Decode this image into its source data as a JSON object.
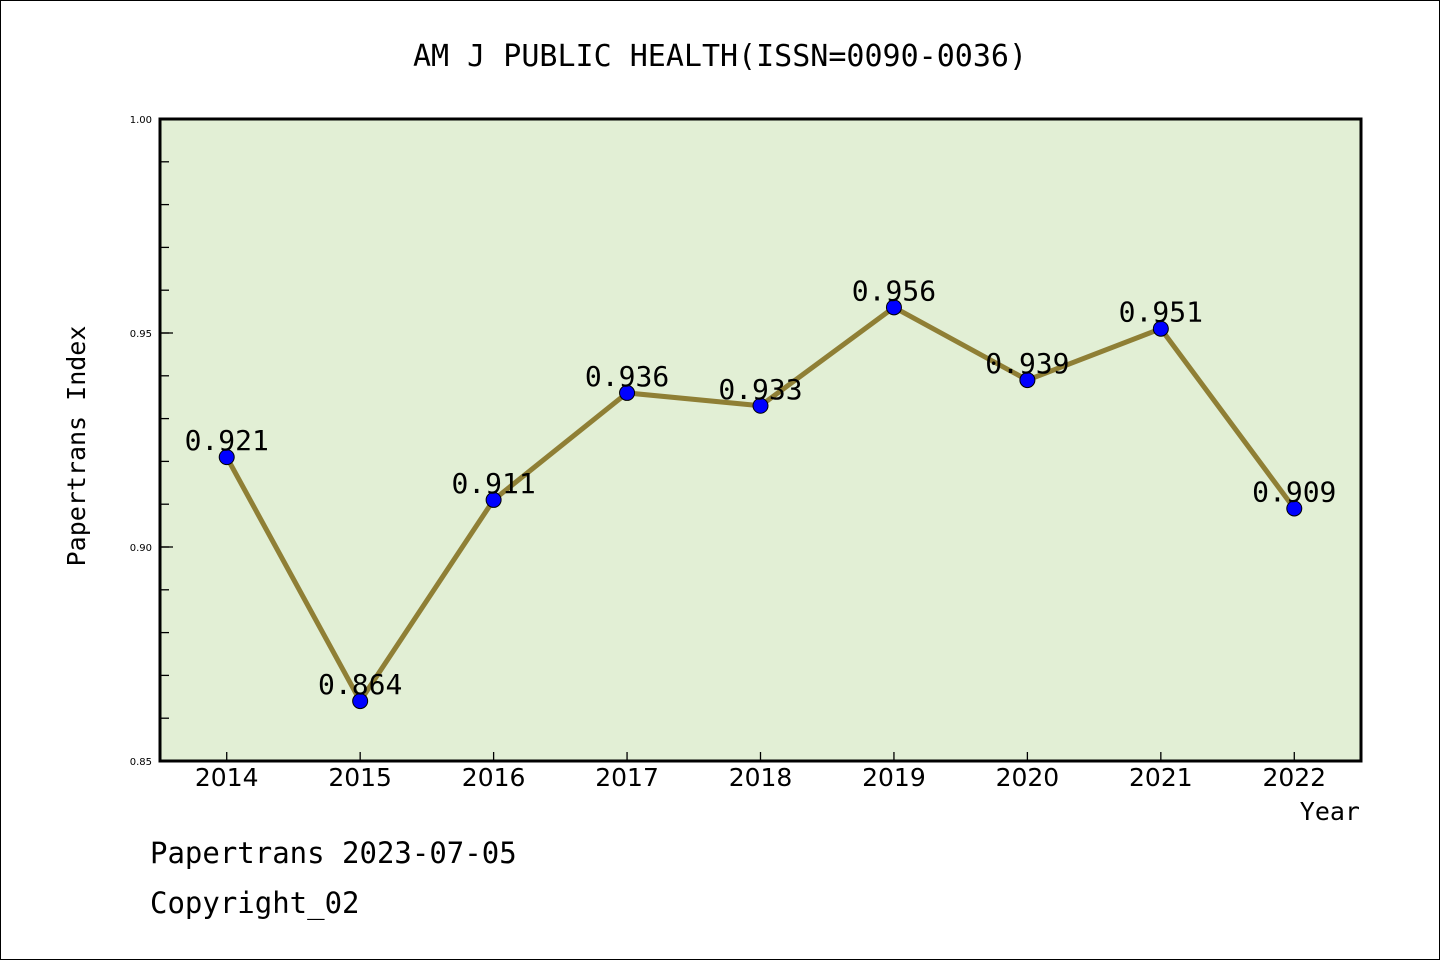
{
  "chart_data": {
    "type": "line",
    "title": "AM J PUBLIC HEALTH(ISSN=0090-0036)",
    "xlabel": "Year",
    "ylabel": "Papertrans Index",
    "x": [
      2014,
      2015,
      2016,
      2017,
      2018,
      2019,
      2020,
      2021,
      2022
    ],
    "x_tick_labels": [
      "2014",
      "2015",
      "2016",
      "2017",
      "2018",
      "2019",
      "2020",
      "2021",
      "2022"
    ],
    "series": [
      {
        "name": "Papertrans Index",
        "values": [
          0.921,
          0.864,
          0.911,
          0.936,
          0.933,
          0.956,
          0.939,
          0.951,
          0.909
        ]
      }
    ],
    "data_labels": [
      "0.921",
      "0.864",
      "0.911",
      "0.936",
      "0.933",
      "0.956",
      "0.939",
      "0.951",
      "0.909"
    ],
    "ylim": [
      0.85,
      1.0
    ],
    "xlim": [
      2013.5,
      2022.5
    ],
    "y_tick_labels": [
      "0.85",
      "0.90",
      "0.95",
      "1.00"
    ],
    "y_ticks": [
      0.85,
      0.9,
      0.95,
      1.0
    ],
    "y_minor_step": 0.01,
    "grid": false,
    "colors": {
      "plot_bg": "#e2efd5",
      "line": "#8f7f35",
      "marker": "#0000ff"
    }
  },
  "footer": {
    "line1": "Papertrans 2023-07-05",
    "line2": "Copyright_02"
  }
}
